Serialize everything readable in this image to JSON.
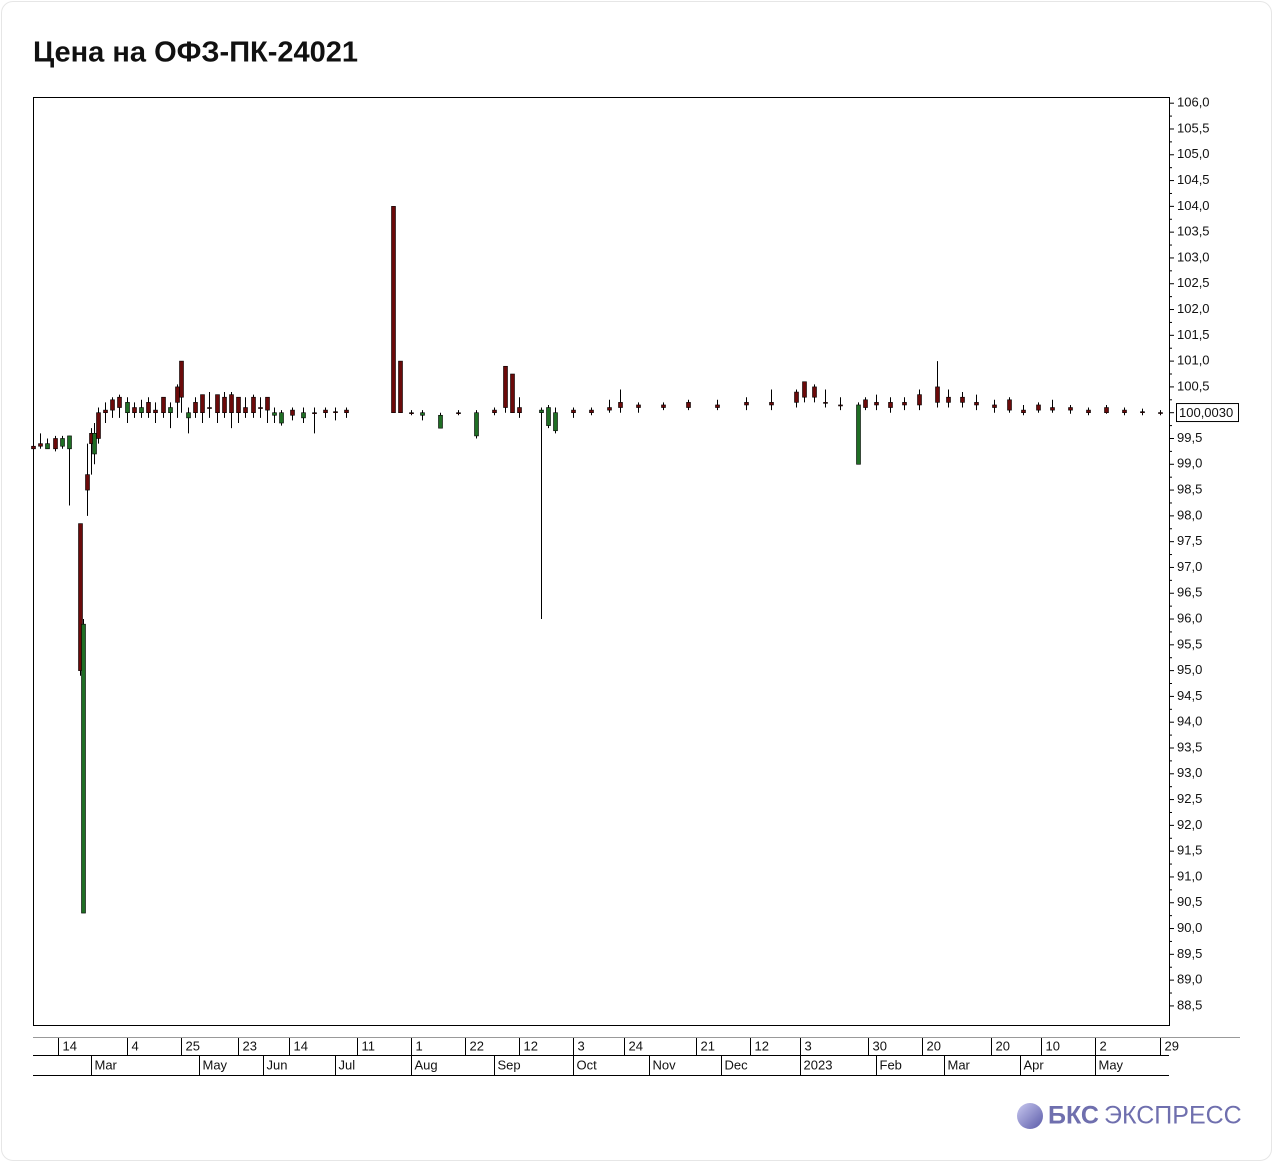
{
  "chart_data": {
    "type": "candlestick",
    "title": "Цена на ОФЗ-ПК-24021",
    "x": [
      0,
      2,
      4,
      6,
      8,
      10,
      13,
      14,
      15,
      16,
      17,
      18,
      20,
      22,
      24,
      26,
      28,
      30,
      32,
      34,
      36,
      38,
      40,
      41,
      43,
      45,
      47,
      49,
      51,
      53,
      55,
      57,
      59,
      61,
      63,
      65,
      67,
      69,
      72,
      75,
      78,
      81,
      84,
      87,
      100,
      102,
      105,
      108,
      113,
      118,
      123,
      128,
      131,
      133,
      135,
      141,
      143,
      145,
      150,
      155,
      160,
      163,
      168,
      175,
      182,
      190,
      198,
      205,
      212,
      214,
      217,
      220,
      224,
      229,
      231,
      234,
      238,
      242,
      246,
      251,
      254,
      258,
      262,
      267,
      271,
      275,
      279,
      283,
      288,
      293,
      298,
      303,
      308,
      313
    ],
    "open": [
      99.3,
      99.35,
      99.4,
      99.3,
      99.5,
      99.55,
      95,
      95.9,
      98.5,
      99.4,
      99.6,
      99.5,
      100,
      100.05,
      100.1,
      100.2,
      100,
      100.1,
      100,
      100,
      100,
      100.1,
      100.2,
      100.3,
      100,
      100,
      100,
      100.1,
      100,
      100,
      100,
      100,
      100,
      100,
      100.1,
      100.05,
      100,
      100,
      99.95,
      100,
      100,
      100,
      100,
      100,
      100,
      100,
      100,
      100,
      99.95,
      100,
      100,
      100,
      100.1,
      100,
      100,
      100.05,
      100.1,
      100,
      100,
      100,
      100.05,
      100.1,
      100.1,
      100.1,
      100.1,
      100.1,
      100.15,
      100.15,
      100.2,
      100.3,
      100.3,
      100.2,
      100.15,
      100.15,
      100.1,
      100.15,
      100.1,
      100.15,
      100.15,
      100.2,
      100.2,
      100.2,
      100.15,
      100.1,
      100.05,
      100,
      100.05,
      100.05,
      100.05,
      100,
      100,
      100,
      100,
      100
    ],
    "high": [
      99.5,
      99.6,
      99.5,
      99.55,
      99.55,
      99.55,
      97.85,
      96,
      99.4,
      99.7,
      99.8,
      100.1,
      100.2,
      100.3,
      100.35,
      100.3,
      100.2,
      100.25,
      100.3,
      100.2,
      100.3,
      100.2,
      100.55,
      101,
      100.1,
      100.3,
      100.35,
      100.4,
      100.35,
      100.4,
      100.4,
      100.3,
      100.3,
      100.35,
      100.3,
      100.3,
      100.1,
      100.05,
      100.1,
      100.1,
      100.1,
      100.1,
      100.1,
      100.1,
      104,
      101,
      100.05,
      100.05,
      100,
      100.05,
      100.05,
      100.1,
      100.9,
      100.75,
      100.3,
      100.1,
      100.15,
      100.1,
      100.1,
      100.1,
      100.25,
      100.45,
      100.2,
      100.2,
      100.25,
      100.25,
      100.3,
      100.45,
      100.45,
      100.6,
      100.55,
      100.45,
      100.3,
      100.2,
      100.3,
      100.35,
      100.3,
      100.3,
      100.45,
      101,
      100.45,
      100.4,
      100.35,
      100.25,
      100.3,
      100.15,
      100.2,
      100.25,
      100.15,
      100.1,
      100.15,
      100.1,
      100.08,
      100.05
    ],
    "low": [
      99.2,
      99.3,
      99.3,
      99.25,
      99.3,
      98.2,
      94.9,
      90.3,
      98,
      98.8,
      99,
      99.4,
      99.8,
      99.9,
      99.9,
      99.8,
      99.9,
      99.9,
      99.9,
      99.8,
      99.9,
      99.7,
      99.9,
      100,
      99.6,
      99.9,
      99.8,
      99.9,
      99.8,
      99.9,
      99.7,
      99.8,
      99.9,
      99.9,
      99.9,
      99.8,
      99.8,
      99.75,
      99.85,
      99.8,
      99.6,
      99.9,
      99.85,
      99.9,
      100,
      100,
      99.95,
      99.85,
      99.7,
      99.95,
      99.5,
      99.95,
      100,
      100,
      99.9,
      96,
      99.7,
      99.6,
      99.9,
      99.95,
      100,
      100,
      100,
      100.05,
      100.05,
      100.05,
      100.05,
      100.05,
      100.1,
      100.2,
      100.2,
      100.1,
      100.05,
      99,
      100.05,
      100.05,
      100,
      100.05,
      100.05,
      100.1,
      100.1,
      100.1,
      100.05,
      100,
      100,
      99.95,
      100,
      100,
      99.98,
      99.95,
      99.98,
      99.95,
      99.95,
      99.95
    ],
    "close": [
      99.35,
      99.4,
      99.3,
      99.5,
      99.35,
      99.3,
      97.85,
      90.3,
      98.8,
      99.6,
      99.2,
      100,
      100.05,
      100.25,
      100.3,
      100,
      100.1,
      100,
      100.2,
      100.05,
      100.3,
      100,
      100.5,
      101,
      99.9,
      100.2,
      100.35,
      100.1,
      100.35,
      100.3,
      100.35,
      100.3,
      100.1,
      100.3,
      100.1,
      100.3,
      99.95,
      99.8,
      100.05,
      99.9,
      100,
      100.05,
      100.02,
      100.05,
      104,
      101,
      100,
      99.95,
      99.7,
      100,
      99.55,
      100.05,
      100.9,
      100.75,
      100.1,
      100,
      99.75,
      99.65,
      100.05,
      100.05,
      100.1,
      100.2,
      100.15,
      100.15,
      100.2,
      100.15,
      100.2,
      100.2,
      100.4,
      100.6,
      100.5,
      100.2,
      100.15,
      99,
      100.25,
      100.2,
      100.2,
      100.2,
      100.35,
      100.5,
      100.3,
      100.3,
      100.2,
      100.15,
      100.25,
      100.05,
      100.15,
      100.1,
      100.1,
      100.05,
      100.1,
      100.05,
      100.02,
      100.003
    ],
    "up_color": "#6b0a0a",
    "down_color": "#1f6e24",
    "xlim": [
      0,
      315.5
    ],
    "ylim": [
      88.13,
      106.12
    ],
    "yticks": [
      {
        "value": 88.5,
        "label": "88,5"
      },
      {
        "value": 89,
        "label": "89,0"
      },
      {
        "value": 89.5,
        "label": "89,5"
      },
      {
        "value": 90,
        "label": "90,0"
      },
      {
        "value": 90.5,
        "label": "90,5"
      },
      {
        "value": 91,
        "label": "91,0"
      },
      {
        "value": 91.5,
        "label": "91,5"
      },
      {
        "value": 92,
        "label": "92,0"
      },
      {
        "value": 92.5,
        "label": "92,5"
      },
      {
        "value": 93,
        "label": "93,0"
      },
      {
        "value": 93.5,
        "label": "93,5"
      },
      {
        "value": 94,
        "label": "94,0"
      },
      {
        "value": 94.5,
        "label": "94,5"
      },
      {
        "value": 95,
        "label": "95,0"
      },
      {
        "value": 95.5,
        "label": "95,5"
      },
      {
        "value": 96,
        "label": "96,0"
      },
      {
        "value": 96.5,
        "label": "96,5"
      },
      {
        "value": 97,
        "label": "97,0"
      },
      {
        "value": 97.5,
        "label": "97,5"
      },
      {
        "value": 98,
        "label": "98,0"
      },
      {
        "value": 98.5,
        "label": "98,5"
      },
      {
        "value": 99,
        "label": "99,0"
      },
      {
        "value": 99.5,
        "label": "99,5"
      },
      {
        "value": 100,
        "label": "100,0"
      },
      {
        "value": 100.5,
        "label": "100,5"
      },
      {
        "value": 101,
        "label": "101,0"
      },
      {
        "value": 101.5,
        "label": "101,5"
      },
      {
        "value": 102,
        "label": "102,0"
      },
      {
        "value": 102.5,
        "label": "102,5"
      },
      {
        "value": 103,
        "label": "103,0"
      },
      {
        "value": 103.5,
        "label": "103,5"
      },
      {
        "value": 104,
        "label": "104,0"
      },
      {
        "value": 104.5,
        "label": "104,5"
      },
      {
        "value": 105,
        "label": "105,0"
      },
      {
        "value": 105.5,
        "label": "105,5"
      },
      {
        "value": 106,
        "label": "106,0"
      }
    ],
    "xticks": [
      {
        "value": 7,
        "label": "14"
      },
      {
        "value": 26,
        "label": "4"
      },
      {
        "value": 41,
        "label": "25"
      },
      {
        "value": 57,
        "label": "23"
      },
      {
        "value": 71,
        "label": "14"
      },
      {
        "value": 90,
        "label": "11"
      },
      {
        "value": 105,
        "label": "1"
      },
      {
        "value": 120,
        "label": "22"
      },
      {
        "value": 135,
        "label": "12"
      },
      {
        "value": 150,
        "label": "3"
      },
      {
        "value": 164,
        "label": "24"
      },
      {
        "value": 184,
        "label": "21"
      },
      {
        "value": 199,
        "label": "12"
      },
      {
        "value": 213,
        "label": "3"
      },
      {
        "value": 232,
        "label": "30"
      },
      {
        "value": 247,
        "label": "20"
      },
      {
        "value": 266,
        "label": "20"
      },
      {
        "value": 280,
        "label": "10"
      },
      {
        "value": 295,
        "label": "2"
      },
      {
        "value": 313,
        "label": "29"
      }
    ],
    "x_period_ticks": [
      {
        "value": 16,
        "label": "Mar"
      },
      {
        "value": 46,
        "label": "May"
      },
      {
        "value": 64,
        "label": "Jun"
      },
      {
        "value": 84,
        "label": "Jul"
      },
      {
        "value": 105,
        "label": "Aug"
      },
      {
        "value": 128,
        "label": "Sep"
      },
      {
        "value": 150,
        "label": "Oct"
      },
      {
        "value": 171,
        "label": "Nov"
      },
      {
        "value": 191,
        "label": "Dec"
      },
      {
        "value": 213,
        "label": "2023"
      },
      {
        "value": 234,
        "label": "Feb"
      },
      {
        "value": 253,
        "label": "Mar"
      },
      {
        "value": 274,
        "label": "Apr"
      },
      {
        "value": 295,
        "label": "May"
      }
    ],
    "last_price": {
      "value": 100.003,
      "label": "100,0030"
    }
  },
  "footer": {
    "brand_bold": "БКС",
    "brand_light": "ЭКСПРЕСС"
  }
}
